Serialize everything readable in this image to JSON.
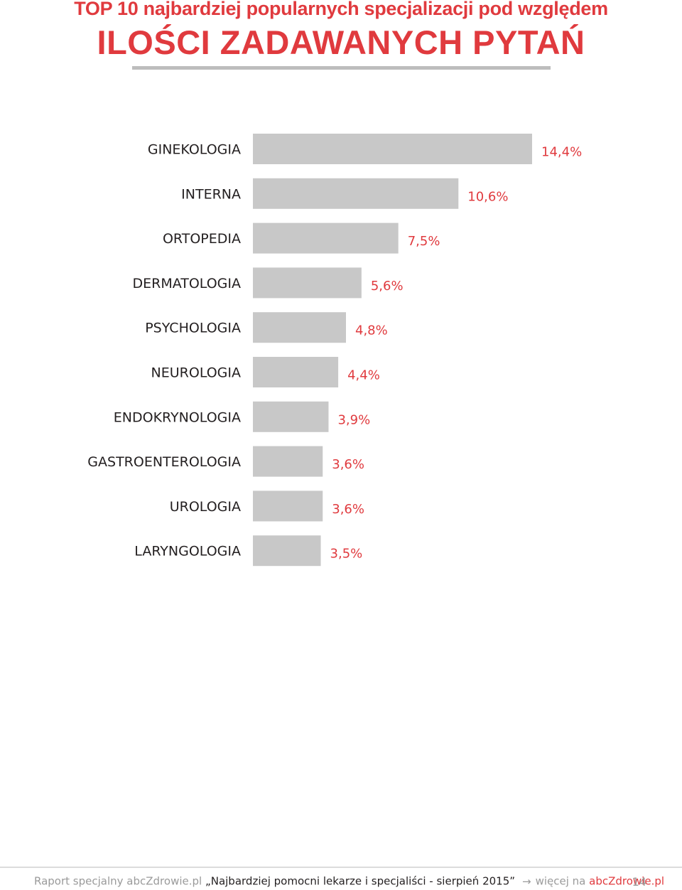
{
  "title": {
    "line1": "TOP 10 najbardziej popularnych specjalizacji pod względem",
    "line2": "ILOŚCI ZADAWANYCH PYTAŃ"
  },
  "chart_data": {
    "type": "bar",
    "orientation": "horizontal",
    "categories": [
      "GINEKOLOGIA",
      "INTERNA",
      "ORTOPEDIA",
      "DERMATOLOGIA",
      "PSYCHOLOGIA",
      "NEUROLOGIA",
      "ENDOKRYNOLOGIA",
      "GASTROENTEROLOGIA",
      "UROLOGIA",
      "LARYNGOLOGIA"
    ],
    "values": [
      14.4,
      10.6,
      7.5,
      5.6,
      4.8,
      4.4,
      3.9,
      3.6,
      3.6,
      3.5
    ],
    "value_labels": [
      "14,4%",
      "10,6%",
      "7,5%",
      "5,6%",
      "4,8%",
      "4,4%",
      "3,9%",
      "3,6%",
      "3,6%",
      "3,5%"
    ],
    "bar_color": "#c8c8c8",
    "label_color": "#e03a3e",
    "grid": false,
    "legend": "none"
  },
  "footer": {
    "prefix": "Raport specjalny abcZdrowie.pl ",
    "report_title": "„Najbardziej pomocni lekarze i specjaliści - sierpień 2015”",
    "more_prefix": "więcej na ",
    "more_link": "abcZdrowie.pl",
    "page_number": "14"
  },
  "colors": {
    "accent": "#e03a3e",
    "bar": "#c8c8c8",
    "text": "#231f20",
    "muted": "#9a9a9a"
  }
}
